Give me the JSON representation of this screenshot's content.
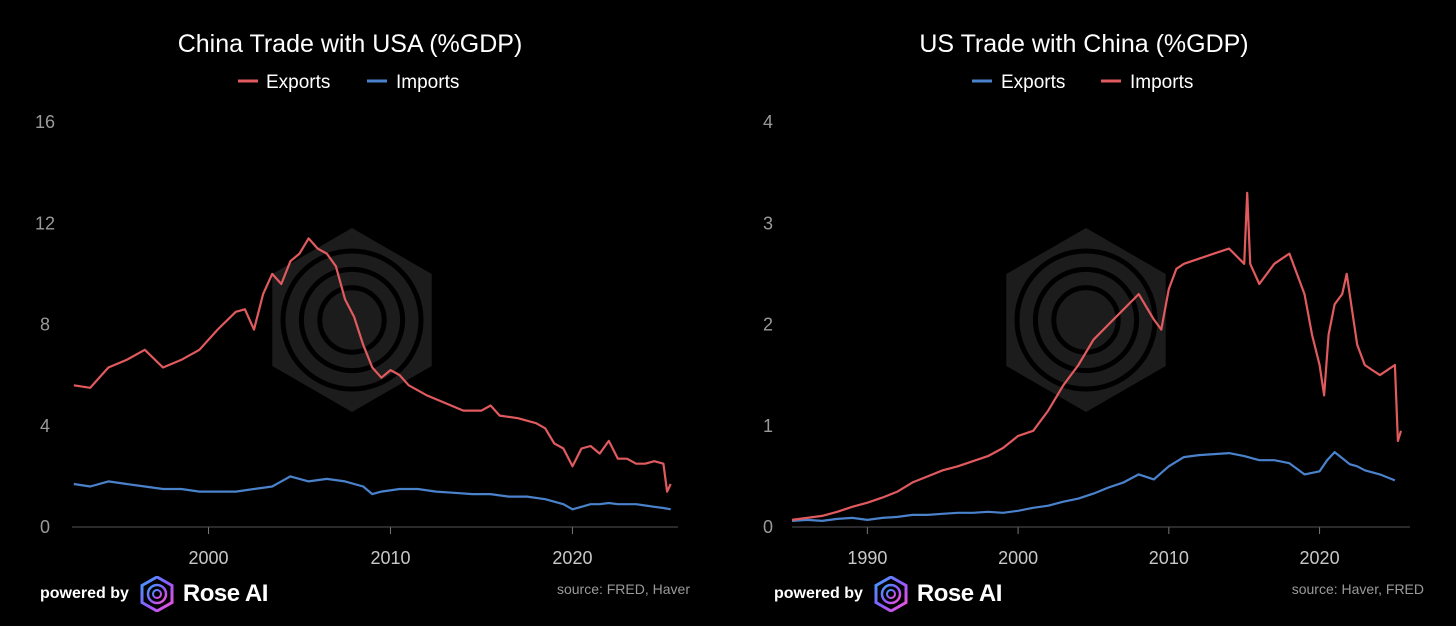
{
  "footer": {
    "powered_by": "powered by",
    "brand": "Rose AI",
    "logo_icon": "rose-ai-logo-icon"
  },
  "colors": {
    "red": "#e05a5e",
    "blue": "#4a82cc",
    "axis": "#555555",
    "watermark": "#2a2a2a"
  },
  "chart_data": [
    {
      "type": "line",
      "title": "China Trade with USA (%GDP)",
      "source": "source: FRED, Haver",
      "xlabel": "",
      "ylabel": "",
      "xlim": [
        1992.5,
        2025.8
      ],
      "ylim": [
        0,
        16
      ],
      "xticks": [
        2000,
        2010,
        2020
      ],
      "yticks": [
        0,
        4,
        8,
        12,
        16
      ],
      "legend": "top-center",
      "grid": false,
      "series": [
        {
          "name": "Exports",
          "color": "#e05a5e",
          "x": [
            1992.6,
            1993.5,
            1994.5,
            1995.5,
            1996.5,
            1997.5,
            1998.5,
            1999.5,
            2000.5,
            2001.5,
            2002.0,
            2002.5,
            2003.0,
            2003.5,
            2004.0,
            2004.5,
            2005.0,
            2005.5,
            2006.0,
            2006.5,
            2007.0,
            2007.5,
            2008.0,
            2008.5,
            2009.0,
            2009.5,
            2010.0,
            2010.5,
            2011.0,
            2011.5,
            2012.0,
            2013.0,
            2014.0,
            2015.0,
            2015.5,
            2016.0,
            2017.0,
            2018.0,
            2018.5,
            2019.0,
            2019.5,
            2020.0,
            2020.5,
            2021.0,
            2021.5,
            2022.0,
            2022.5,
            2023.0,
            2023.5,
            2024.0,
            2024.5,
            2025.0,
            2025.2,
            2025.4
          ],
          "y": [
            5.6,
            5.5,
            6.3,
            6.6,
            7.0,
            6.3,
            6.6,
            7.0,
            7.8,
            8.5,
            8.6,
            7.8,
            9.2,
            10.0,
            9.6,
            10.5,
            10.8,
            11.4,
            11.0,
            10.8,
            10.3,
            9.0,
            8.3,
            7.2,
            6.3,
            5.9,
            6.2,
            6.0,
            5.6,
            5.4,
            5.2,
            4.9,
            4.6,
            4.6,
            4.8,
            4.4,
            4.3,
            4.1,
            3.9,
            3.3,
            3.1,
            2.4,
            3.1,
            3.2,
            2.9,
            3.4,
            2.7,
            2.7,
            2.5,
            2.5,
            2.6,
            2.5,
            1.4,
            1.7
          ]
        },
        {
          "name": "Imports",
          "color": "#4a82cc",
          "x": [
            1992.6,
            1993.5,
            1994.5,
            1995.5,
            1996.5,
            1997.5,
            1998.5,
            1999.5,
            2000.5,
            2001.5,
            2002.5,
            2003.5,
            2004.0,
            2004.5,
            2005.5,
            2006.5,
            2007.5,
            2008.5,
            2009.0,
            2009.5,
            2010.5,
            2011.5,
            2012.5,
            2013.5,
            2014.5,
            2015.5,
            2016.5,
            2017.5,
            2018.5,
            2019.0,
            2019.5,
            2020.0,
            2020.5,
            2021.0,
            2021.5,
            2022.0,
            2022.5,
            2023.0,
            2023.5,
            2024.0,
            2024.5,
            2025.0,
            2025.4
          ],
          "y": [
            1.7,
            1.6,
            1.8,
            1.7,
            1.6,
            1.5,
            1.5,
            1.4,
            1.4,
            1.4,
            1.5,
            1.6,
            1.8,
            2.0,
            1.8,
            1.9,
            1.8,
            1.6,
            1.3,
            1.4,
            1.5,
            1.5,
            1.4,
            1.35,
            1.3,
            1.3,
            1.2,
            1.2,
            1.1,
            1.0,
            0.9,
            0.7,
            0.8,
            0.9,
            0.9,
            0.95,
            0.9,
            0.9,
            0.9,
            0.85,
            0.8,
            0.75,
            0.7
          ]
        }
      ]
    },
    {
      "type": "line",
      "title": "US Trade with China (%GDP)",
      "source": "source: Haver, FRED",
      "xlabel": "",
      "ylabel": "",
      "xlim": [
        1985,
        2026
      ],
      "ylim": [
        0,
        4
      ],
      "xticks": [
        1990,
        2000,
        2010,
        2020
      ],
      "yticks": [
        0,
        1,
        2,
        3,
        4
      ],
      "legend": "top-center",
      "grid": false,
      "series": [
        {
          "name": "Exports",
          "color": "#4a82cc",
          "x": [
            1985.0,
            1986.0,
            1987.0,
            1988.0,
            1989.0,
            1990.0,
            1991.0,
            1992.0,
            1993.0,
            1994.0,
            1995.0,
            1996.0,
            1997.0,
            1998.0,
            1999.0,
            2000.0,
            2001.0,
            2002.0,
            2003.0,
            2004.0,
            2005.0,
            2006.0,
            2007.0,
            2008.0,
            2009.0,
            2010.0,
            2011.0,
            2012.0,
            2013.0,
            2014.0,
            2015.0,
            2016.0,
            2017.0,
            2018.0,
            2019.0,
            2020.0,
            2020.5,
            2021.0,
            2021.5,
            2022.0,
            2022.5,
            2023.0,
            2024.0,
            2025.0
          ],
          "y": [
            0.06,
            0.07,
            0.06,
            0.08,
            0.09,
            0.07,
            0.09,
            0.1,
            0.12,
            0.12,
            0.13,
            0.14,
            0.14,
            0.15,
            0.14,
            0.16,
            0.19,
            0.21,
            0.25,
            0.28,
            0.33,
            0.39,
            0.44,
            0.52,
            0.47,
            0.6,
            0.69,
            0.71,
            0.72,
            0.73,
            0.7,
            0.66,
            0.66,
            0.63,
            0.52,
            0.55,
            0.66,
            0.74,
            0.68,
            0.62,
            0.6,
            0.56,
            0.52,
            0.46
          ]
        },
        {
          "name": "Imports",
          "color": "#e05a5e",
          "x": [
            1985.0,
            1986.0,
            1987.0,
            1988.0,
            1989.0,
            1990.0,
            1991.0,
            1992.0,
            1993.0,
            1994.0,
            1995.0,
            1996.0,
            1997.0,
            1998.0,
            1999.0,
            2000.0,
            2001.0,
            2002.0,
            2003.0,
            2004.0,
            2005.0,
            2006.0,
            2007.0,
            2008.0,
            2009.0,
            2009.5,
            2010.0,
            2010.5,
            2011.0,
            2012.0,
            2013.0,
            2014.0,
            2015.0,
            2015.2,
            2015.4,
            2016.0,
            2017.0,
            2018.0,
            2019.0,
            2019.5,
            2020.0,
            2020.3,
            2020.6,
            2021.0,
            2021.5,
            2021.8,
            2022.0,
            2022.5,
            2023.0,
            2023.5,
            2024.0,
            2024.5,
            2025.0,
            2025.2,
            2025.4
          ],
          "y": [
            0.07,
            0.09,
            0.11,
            0.15,
            0.2,
            0.24,
            0.29,
            0.35,
            0.44,
            0.5,
            0.56,
            0.6,
            0.65,
            0.7,
            0.78,
            0.9,
            0.95,
            1.15,
            1.4,
            1.6,
            1.85,
            2.0,
            2.15,
            2.3,
            2.05,
            1.95,
            2.35,
            2.55,
            2.6,
            2.65,
            2.7,
            2.75,
            2.6,
            3.3,
            2.6,
            2.4,
            2.6,
            2.7,
            2.3,
            1.9,
            1.6,
            1.3,
            1.9,
            2.2,
            2.3,
            2.5,
            2.3,
            1.8,
            1.6,
            1.55,
            1.5,
            1.55,
            1.6,
            0.85,
            0.95
          ]
        }
      ]
    }
  ]
}
